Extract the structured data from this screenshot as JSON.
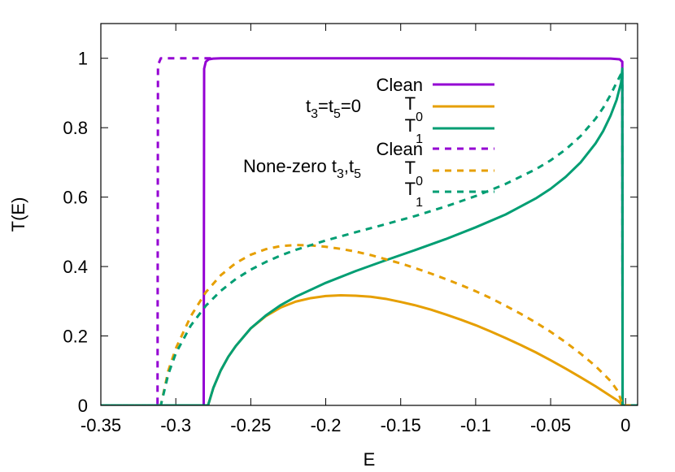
{
  "chart_data": {
    "type": "line",
    "xlabel": "E",
    "ylabel": "T(E)",
    "xlim": [
      -0.35,
      0.008
    ],
    "ylim": [
      0,
      1.1
    ],
    "xticks": [
      -0.35,
      -0.3,
      -0.25,
      -0.2,
      -0.15,
      -0.1,
      -0.05,
      0
    ],
    "xtick_labels": [
      "-0.35",
      "-0.3",
      "-0.25",
      "-0.2",
      "-0.15",
      "-0.1",
      "-0.05",
      "0"
    ],
    "yticks": [
      0,
      0.2,
      0.4,
      0.6,
      0.8,
      1
    ],
    "ytick_labels": [
      "0",
      "0.2",
      "0.4",
      "0.6",
      "0.8",
      "1"
    ],
    "grid": false,
    "legend_position": "top-right",
    "annotations": {
      "group1": {
        "base": "t",
        "sub1": "3",
        "mid": "=t",
        "sub2": "5",
        "tail": "=0"
      },
      "group2": {
        "base": "None-zero t",
        "sub1": "3",
        "mid": ",t",
        "sub2": "5",
        "tail": ""
      }
    },
    "series": [
      {
        "name": "Clean",
        "legend_base": "Clean",
        "legend_sub": "",
        "group": "t3=t5=0",
        "color": "#9400d3",
        "dash": "solid",
        "x": [
          -0.352,
          -0.2814,
          -0.2811,
          -0.28,
          -0.278,
          -0.275,
          -0.27,
          -0.2,
          -0.1,
          -0.01,
          -0.004,
          -0.0022,
          -0.002,
          0.008
        ],
        "y": [
          0,
          0,
          0.97,
          0.99,
          0.997,
          0.999,
          1.0,
          1.0,
          1.0,
          0.999,
          0.997,
          0.99,
          0,
          0
        ]
      },
      {
        "name": "T0",
        "legend_base": "T",
        "legend_sub": "0",
        "group": "t3=t5=0",
        "color": "#e69f00",
        "dash": "solid",
        "x": [
          -0.352,
          -0.2785,
          -0.275,
          -0.27,
          -0.265,
          -0.26,
          -0.25,
          -0.24,
          -0.23,
          -0.22,
          -0.21,
          -0.2,
          -0.19,
          -0.18,
          -0.17,
          -0.16,
          -0.15,
          -0.14,
          -0.13,
          -0.12,
          -0.11,
          -0.1,
          -0.09,
          -0.08,
          -0.07,
          -0.06,
          -0.05,
          -0.04,
          -0.03,
          -0.02,
          -0.01,
          -0.005,
          -0.002,
          0.008
        ],
        "y": [
          0,
          0,
          0.05,
          0.101,
          0.14,
          0.171,
          0.222,
          0.257,
          0.282,
          0.299,
          0.309,
          0.315,
          0.317,
          0.316,
          0.313,
          0.307,
          0.298,
          0.288,
          0.276,
          0.262,
          0.247,
          0.231,
          0.213,
          0.194,
          0.174,
          0.153,
          0.13,
          0.106,
          0.081,
          0.055,
          0.027,
          0.013,
          0,
          0
        ]
      },
      {
        "name": "T1",
        "legend_base": "T",
        "legend_sub": "1",
        "group": "t3=t5=0",
        "color": "#009e73",
        "dash": "solid",
        "x": [
          -0.352,
          -0.2785,
          -0.275,
          -0.27,
          -0.265,
          -0.26,
          -0.25,
          -0.24,
          -0.23,
          -0.22,
          -0.2,
          -0.18,
          -0.16,
          -0.14,
          -0.12,
          -0.1,
          -0.08,
          -0.06,
          -0.05,
          -0.04,
          -0.03,
          -0.02,
          -0.015,
          -0.01,
          -0.006,
          -0.003,
          -0.0022,
          -0.002,
          0.008
        ],
        "y": [
          0,
          0,
          0.05,
          0.101,
          0.14,
          0.171,
          0.222,
          0.259,
          0.289,
          0.313,
          0.353,
          0.387,
          0.418,
          0.448,
          0.479,
          0.513,
          0.55,
          0.596,
          0.624,
          0.658,
          0.7,
          0.755,
          0.79,
          0.835,
          0.88,
          0.93,
          0.97,
          0,
          0
        ]
      },
      {
        "name": "Clean",
        "legend_base": "Clean",
        "legend_sub": "",
        "group": "None-zero t3,t5",
        "color": "#9400d3",
        "dash": "dashed",
        "x": [
          -0.352,
          -0.3122,
          -0.3119,
          -0.31,
          -0.3,
          -0.28,
          -0.2765
        ],
        "y": [
          0,
          0,
          0.98,
          1.0,
          1.0,
          1.0,
          1.0
        ]
      },
      {
        "name": "T0",
        "legend_base": "T",
        "legend_sub": "0",
        "group": "None-zero t3,t5",
        "color": "#e69f00",
        "dash": "dashed",
        "x": [
          -0.352,
          -0.31,
          -0.305,
          -0.3,
          -0.29,
          -0.28,
          -0.27,
          -0.26,
          -0.25,
          -0.24,
          -0.23,
          -0.22,
          -0.21,
          -0.2,
          -0.19,
          -0.18,
          -0.17,
          -0.16,
          -0.15,
          -0.14,
          -0.13,
          -0.12,
          -0.11,
          -0.1,
          -0.09,
          -0.08,
          -0.07,
          -0.06,
          -0.05,
          -0.04,
          -0.03,
          -0.02,
          -0.01,
          -0.005,
          -0.002,
          0.008
        ],
        "y": [
          0,
          0,
          0.1,
          0.164,
          0.257,
          0.326,
          0.375,
          0.41,
          0.434,
          0.45,
          0.459,
          0.462,
          0.461,
          0.457,
          0.451,
          0.443,
          0.433,
          0.421,
          0.409,
          0.395,
          0.38,
          0.364,
          0.347,
          0.329,
          0.309,
          0.287,
          0.264,
          0.239,
          0.212,
          0.182,
          0.149,
          0.113,
          0.07,
          0.04,
          0,
          0
        ]
      },
      {
        "name": "T1",
        "legend_base": "T",
        "legend_sub": "1",
        "group": "None-zero t3,t5",
        "color": "#009e73",
        "dash": "dashed",
        "x": [
          -0.352,
          -0.31,
          -0.305,
          -0.3,
          -0.29,
          -0.28,
          -0.27,
          -0.26,
          -0.25,
          -0.24,
          -0.23,
          -0.22,
          -0.2,
          -0.18,
          -0.16,
          -0.14,
          -0.12,
          -0.1,
          -0.08,
          -0.06,
          -0.05,
          -0.04,
          -0.03,
          -0.02,
          -0.015,
          -0.01,
          -0.006,
          -0.003,
          -0.0022,
          -0.002,
          0.008
        ],
        "y": [
          0,
          0,
          0.09,
          0.15,
          0.23,
          0.287,
          0.33,
          0.364,
          0.391,
          0.413,
          0.432,
          0.448,
          0.475,
          0.499,
          0.522,
          0.546,
          0.573,
          0.603,
          0.638,
          0.68,
          0.706,
          0.737,
          0.776,
          0.826,
          0.857,
          0.895,
          0.93,
          0.955,
          0.965,
          0,
          0
        ]
      }
    ]
  }
}
